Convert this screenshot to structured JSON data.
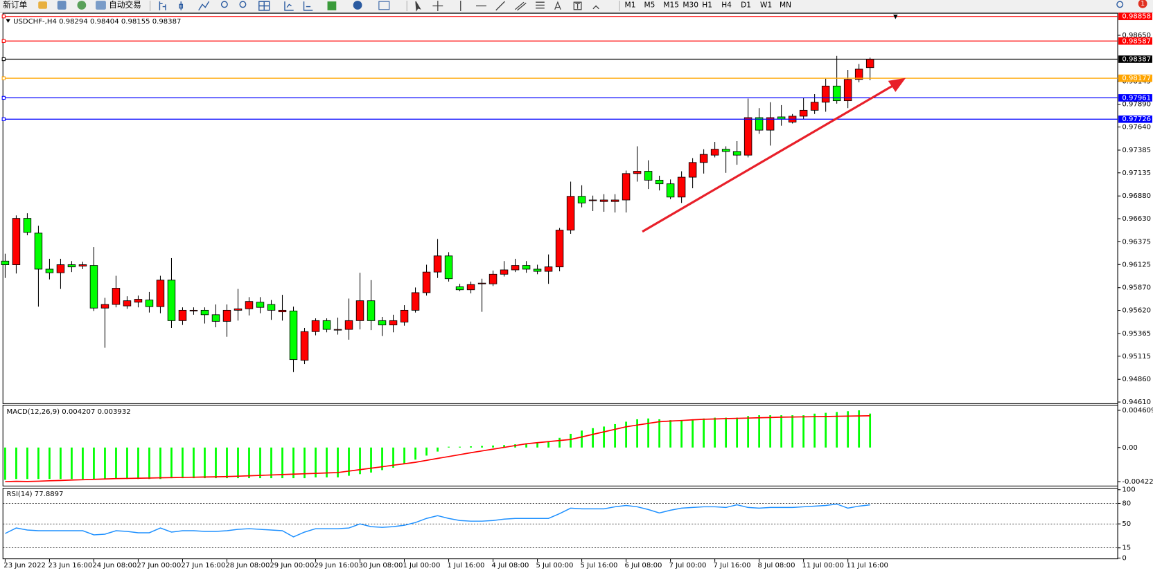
{
  "toolbar": {
    "new_order": "新订单",
    "auto_trading": "自动交易",
    "timeframes": [
      "M1",
      "M5",
      "M15",
      "M30",
      "H1",
      "H4",
      "D1",
      "W1",
      "MN"
    ],
    "notifications": 1
  },
  "chart_data": [
    {
      "type": "candlestick",
      "title": "USDCHF-,H4",
      "categories": [
        "23 Jun 2022",
        null,
        null,
        null,
        "23 Jun 16:00",
        null,
        null,
        null,
        "24 Jun 08:00",
        null,
        null,
        null,
        "27 Jun 00:00",
        null,
        null,
        null,
        "27 Jun 16:00",
        null,
        null,
        null,
        "28 Jun 08:00",
        null,
        null,
        null,
        "29 Jun 00:00",
        null,
        null,
        null,
        "29 Jun 16:00",
        null,
        null,
        null,
        "30 Jun 08:00",
        null,
        null,
        null,
        "1 Jul 00:00",
        null,
        null,
        null,
        "1 Jul 16:00",
        null,
        null,
        null,
        "4 Jul 08:00",
        null,
        null,
        null,
        "5 Jul 00:00",
        null,
        null,
        null,
        "5 Jul 16:00",
        null,
        null,
        null,
        "6 Jul 08:00",
        null,
        null,
        null,
        "7 Jul 00:00",
        null,
        null,
        null,
        "7 Jul 16:00",
        null,
        null,
        null,
        "8 Jul 08:00",
        null,
        null,
        null,
        "11 Jul 00:00",
        null,
        null,
        null,
        "11 Jul 16:00",
        null,
        null
      ],
      "open": [
        0.96163,
        0.96123,
        0.96633,
        0.96471,
        0.96074,
        0.96034,
        0.96123,
        0.96107,
        0.96115,
        0.95645,
        0.95685,
        0.95669,
        0.9571,
        0.95734,
        0.95661,
        0.95953,
        0.95507,
        0.95613,
        0.95621,
        0.95572,
        0.95499,
        0.95621,
        0.95637,
        0.9571,
        0.95685,
        0.95604,
        0.95613,
        0.9507,
        0.95386,
        0.95507,
        0.95402,
        0.9541,
        0.95507,
        0.95726,
        0.95507,
        0.95459,
        0.95491,
        0.95621,
        0.95815,
        0.96042,
        0.9622,
        0.9588,
        0.95847,
        0.95912,
        0.95912,
        0.96018,
        0.96066,
        0.96115,
        0.96074,
        0.9605,
        0.96099,
        0.96504,
        0.96876,
        0.96828,
        0.96819,
        0.96819,
        0.96836,
        0.97127,
        0.97152,
        0.97054,
        0.97014,
        0.96868,
        0.97087,
        0.97249,
        0.9733,
        0.97395,
        0.9737,
        0.9733,
        0.97743,
        0.97605,
        0.97751,
        0.97694,
        0.97759,
        0.97824,
        0.97913,
        0.98091,
        0.97929,
        0.98164,
        0.98294
      ],
      "high": [
        0.96244,
        0.96666,
        0.9669,
        0.96552,
        0.96188,
        0.96188,
        0.96163,
        0.96155,
        0.96317,
        0.95758,
        0.96001,
        0.95775,
        0.95783,
        0.95823,
        0.96001,
        0.96196,
        0.95653,
        0.95653,
        0.95653,
        0.95685,
        0.95685,
        0.95856,
        0.95766,
        0.95766,
        0.95734,
        0.95791,
        0.95661,
        0.95426,
        0.95532,
        0.95532,
        0.9554,
        0.9575,
        0.96034,
        0.95953,
        0.95548,
        0.95572,
        0.95677,
        0.95872,
        0.96123,
        0.96406,
        0.96261,
        0.95912,
        0.95937,
        0.95969,
        0.96058,
        0.96163,
        0.96188,
        0.96163,
        0.96123,
        0.96236,
        0.96528,
        0.97038,
        0.96998,
        0.96884,
        0.969,
        0.969,
        0.9716,
        0.97427,
        0.97273,
        0.97103,
        0.97062,
        0.97152,
        0.97297,
        0.97395,
        0.97476,
        0.97427,
        0.97484,
        0.97953,
        0.97848,
        0.97913,
        0.97881,
        0.97783,
        0.97962,
        0.98002,
        0.98172,
        0.98423,
        0.98269,
        0.98334,
        0.98404
      ],
      "low": [
        0.95977,
        0.96026,
        0.96447,
        0.95661,
        0.95961,
        0.95856,
        0.96042,
        0.96074,
        0.95613,
        0.95208,
        0.95653,
        0.95637,
        0.95653,
        0.95596,
        0.95588,
        0.95426,
        0.95459,
        0.95572,
        0.95475,
        0.95434,
        0.95329,
        0.95507,
        0.95564,
        0.95588,
        0.95515,
        0.95507,
        0.9494,
        0.95029,
        0.95345,
        0.95378,
        0.95353,
        0.95297,
        0.9541,
        0.95402,
        0.95337,
        0.95378,
        0.95451,
        0.95596,
        0.95783,
        0.95977,
        0.95937,
        0.95831,
        0.95807,
        0.95604,
        0.95888,
        0.95993,
        0.96042,
        0.96034,
        0.96018,
        0.95912,
        0.9605,
        0.96463,
        0.96755,
        0.96714,
        0.96706,
        0.96698,
        0.96698,
        0.97038,
        0.96957,
        0.96941,
        0.96844,
        0.96803,
        0.96965,
        0.97127,
        0.97305,
        0.97135,
        0.97224,
        0.97305,
        0.97565,
        0.97435,
        0.97654,
        0.97678,
        0.97727,
        0.97783,
        0.97808,
        0.97897,
        0.97848,
        0.98132,
        0.98155
      ],
      "close": [
        0.96123,
        0.96633,
        0.96479,
        0.96074,
        0.96034,
        0.96123,
        0.96099,
        0.96123,
        0.95645,
        0.95685,
        0.95864,
        0.95726,
        0.95742,
        0.95661,
        0.95953,
        0.95507,
        0.95621,
        0.95621,
        0.95572,
        0.95499,
        0.95621,
        0.95637,
        0.95718,
        0.95653,
        0.95621,
        0.95621,
        0.95078,
        0.95386,
        0.95507,
        0.9541,
        0.9541,
        0.95507,
        0.95726,
        0.95507,
        0.95459,
        0.95507,
        0.95621,
        0.95815,
        0.96042,
        0.9622,
        0.95969,
        0.95847,
        0.95904,
        0.9592,
        0.96018,
        0.96066,
        0.96115,
        0.96074,
        0.9605,
        0.96099,
        0.96504,
        0.96876,
        0.96803,
        0.96836,
        0.96836,
        0.96836,
        0.97127,
        0.97152,
        0.97054,
        0.97014,
        0.96868,
        0.97087,
        0.97249,
        0.97338,
        0.97395,
        0.9737,
        0.9733,
        0.97743,
        0.97605,
        0.97743,
        0.97727,
        0.97759,
        0.97824,
        0.97913,
        0.98091,
        0.97929,
        0.98164,
        0.98277,
        0.98387
      ],
      "colors": {
        "up": "#ff0000",
        "down": "#00ff00"
      },
      "ylim": [
        0.94592,
        0.98893
      ],
      "yticks": [
        {
          "value": 0.9865,
          "label": "0.98650"
        },
        0.98145,
        {
          "value": 0.9789,
          "label": "0.97890"
        },
        {
          "value": 0.9764,
          "label": "0.97640"
        },
        0.97385,
        0.97135,
        {
          "value": 0.9688,
          "label": "0.96880"
        },
        {
          "value": 0.9663,
          "label": "0.96630"
        },
        0.96375,
        0.96125,
        {
          "value": 0.9587,
          "label": "0.95870"
        },
        {
          "value": 0.9562,
          "label": "0.95620"
        },
        0.95365,
        0.95115,
        {
          "value": 0.9486,
          "label": "0.94860"
        },
        {
          "value": 0.9461,
          "label": "0.94610"
        }
      ],
      "levels": [
        {
          "value": 0.98858,
          "color": "#ff0000"
        },
        {
          "value": 0.98587,
          "color": "#ff0000"
        },
        {
          "value": 0.98387,
          "color": "#000000"
        },
        {
          "value": 0.98177,
          "color": "#ffa500"
        },
        {
          "value": 0.97961,
          "color": "#0000ff"
        },
        {
          "value": 0.97726,
          "color": "#0000ff"
        }
      ]
    },
    {
      "type": "macd",
      "title": "MACD(12,26,9)",
      "series": [
        {
          "color": "#00ff00",
          "values": [
            -0.004,
            -0.0039,
            -0.0039,
            -0.0039,
            -0.0039,
            -0.0039,
            -0.0039,
            -0.0039,
            -0.0039,
            -0.0039,
            -0.0039,
            -0.0039,
            -0.0039,
            -0.0039,
            -0.0039,
            -0.0038,
            -0.0038,
            -0.0038,
            -0.0038,
            -0.0038,
            -0.0038,
            -0.0038,
            -0.0038,
            -0.0038,
            -0.0038,
            -0.0038,
            -0.0038,
            -0.0038,
            -0.0037,
            -0.0037,
            -0.0037,
            -0.0035,
            -0.0033,
            -0.0031,
            -0.0028,
            -0.0025,
            -0.002,
            -0.0015,
            -0.001,
            -0.0005,
            0.0001,
            0.0001,
            0.00015,
            0.0002,
            0.00025,
            0.0003,
            0.0004,
            0.0005,
            0.0006,
            0.0008,
            0.0012,
            0.0017,
            0.0021,
            0.0024,
            0.0026,
            0.0029,
            0.0032,
            0.0035,
            0.0036,
            0.0035,
            0.0034,
            0.0034,
            0.0035,
            0.0036,
            0.0037,
            0.0037,
            0.0037,
            0.0039,
            0.004,
            0.004,
            0.004,
            0.004,
            0.004,
            0.0042,
            0.0043,
            0.0044,
            0.0045,
            0.004609,
            0.004207
          ]
        },
        {
          "color": "#ff0000",
          "values": [
            -0.004225,
            -0.00419,
            -0.00421,
            -0.00417,
            -0.00412,
            -0.00408,
            -0.00403,
            -0.00399,
            -0.00394,
            -0.0039,
            -0.00385,
            -0.00383,
            -0.0038,
            -0.00378,
            -0.00375,
            -0.00373,
            -0.0037,
            -0.00368,
            -0.00365,
            -0.00363,
            -0.0036,
            -0.00355,
            -0.0035,
            -0.00345,
            -0.0034,
            -0.00335,
            -0.0033,
            -0.00325,
            -0.0032,
            -0.00315,
            -0.0031,
            -0.00292,
            -0.00274,
            -0.00256,
            -0.00238,
            -0.00219,
            -0.00201,
            -0.00183,
            -0.00159,
            -0.00135,
            -0.00112,
            -0.00088,
            -0.00064,
            -0.00042,
            -0.0002,
            2e-05,
            0.00024,
            0.00046,
            0.0006,
            0.00073,
            0.00087,
            0.001,
            0.00131,
            0.00163,
            0.00194,
            0.00226,
            0.00257,
            0.00278,
            0.00299,
            0.0032,
            0.00328,
            0.00335,
            0.00343,
            0.0035,
            0.00354,
            0.00358,
            0.00361,
            0.00365,
            0.00369,
            0.00372,
            0.00376,
            0.00378,
            0.0038,
            0.00382,
            0.00384,
            0.00387,
            0.00389,
            0.00391,
            0.003932
          ]
        }
      ],
      "ylim": [
        -0.00477,
        0.00525
      ],
      "yticks": [
        0.004609,
        {
          "value": 0,
          "label": "0.00"
        },
        -0.004225
      ]
    },
    {
      "type": "line",
      "title": "RSI(14)",
      "series": [
        {
          "color": "#1e90ff",
          "values": [
            36,
            44,
            41,
            40,
            40,
            40,
            40,
            40,
            34,
            35,
            40,
            39,
            37,
            37,
            44,
            38,
            40,
            40,
            39,
            39,
            40,
            42,
            43,
            42,
            41,
            40,
            31,
            38,
            43,
            43,
            43,
            44,
            50,
            46,
            45,
            46,
            48,
            52,
            58,
            62,
            58,
            55,
            54,
            54,
            55,
            57,
            58,
            58,
            58,
            58,
            65,
            73,
            72,
            72,
            72,
            75,
            77,
            75,
            71,
            66,
            70,
            73,
            74,
            75,
            75,
            74,
            78,
            74,
            73,
            74,
            74,
            74,
            75,
            76,
            77,
            79,
            73,
            76,
            77.8897
          ]
        }
      ],
      "ylim": [
        0,
        100
      ],
      "yticks": [
        100,
        80,
        50,
        15,
        0
      ]
    }
  ]
}
